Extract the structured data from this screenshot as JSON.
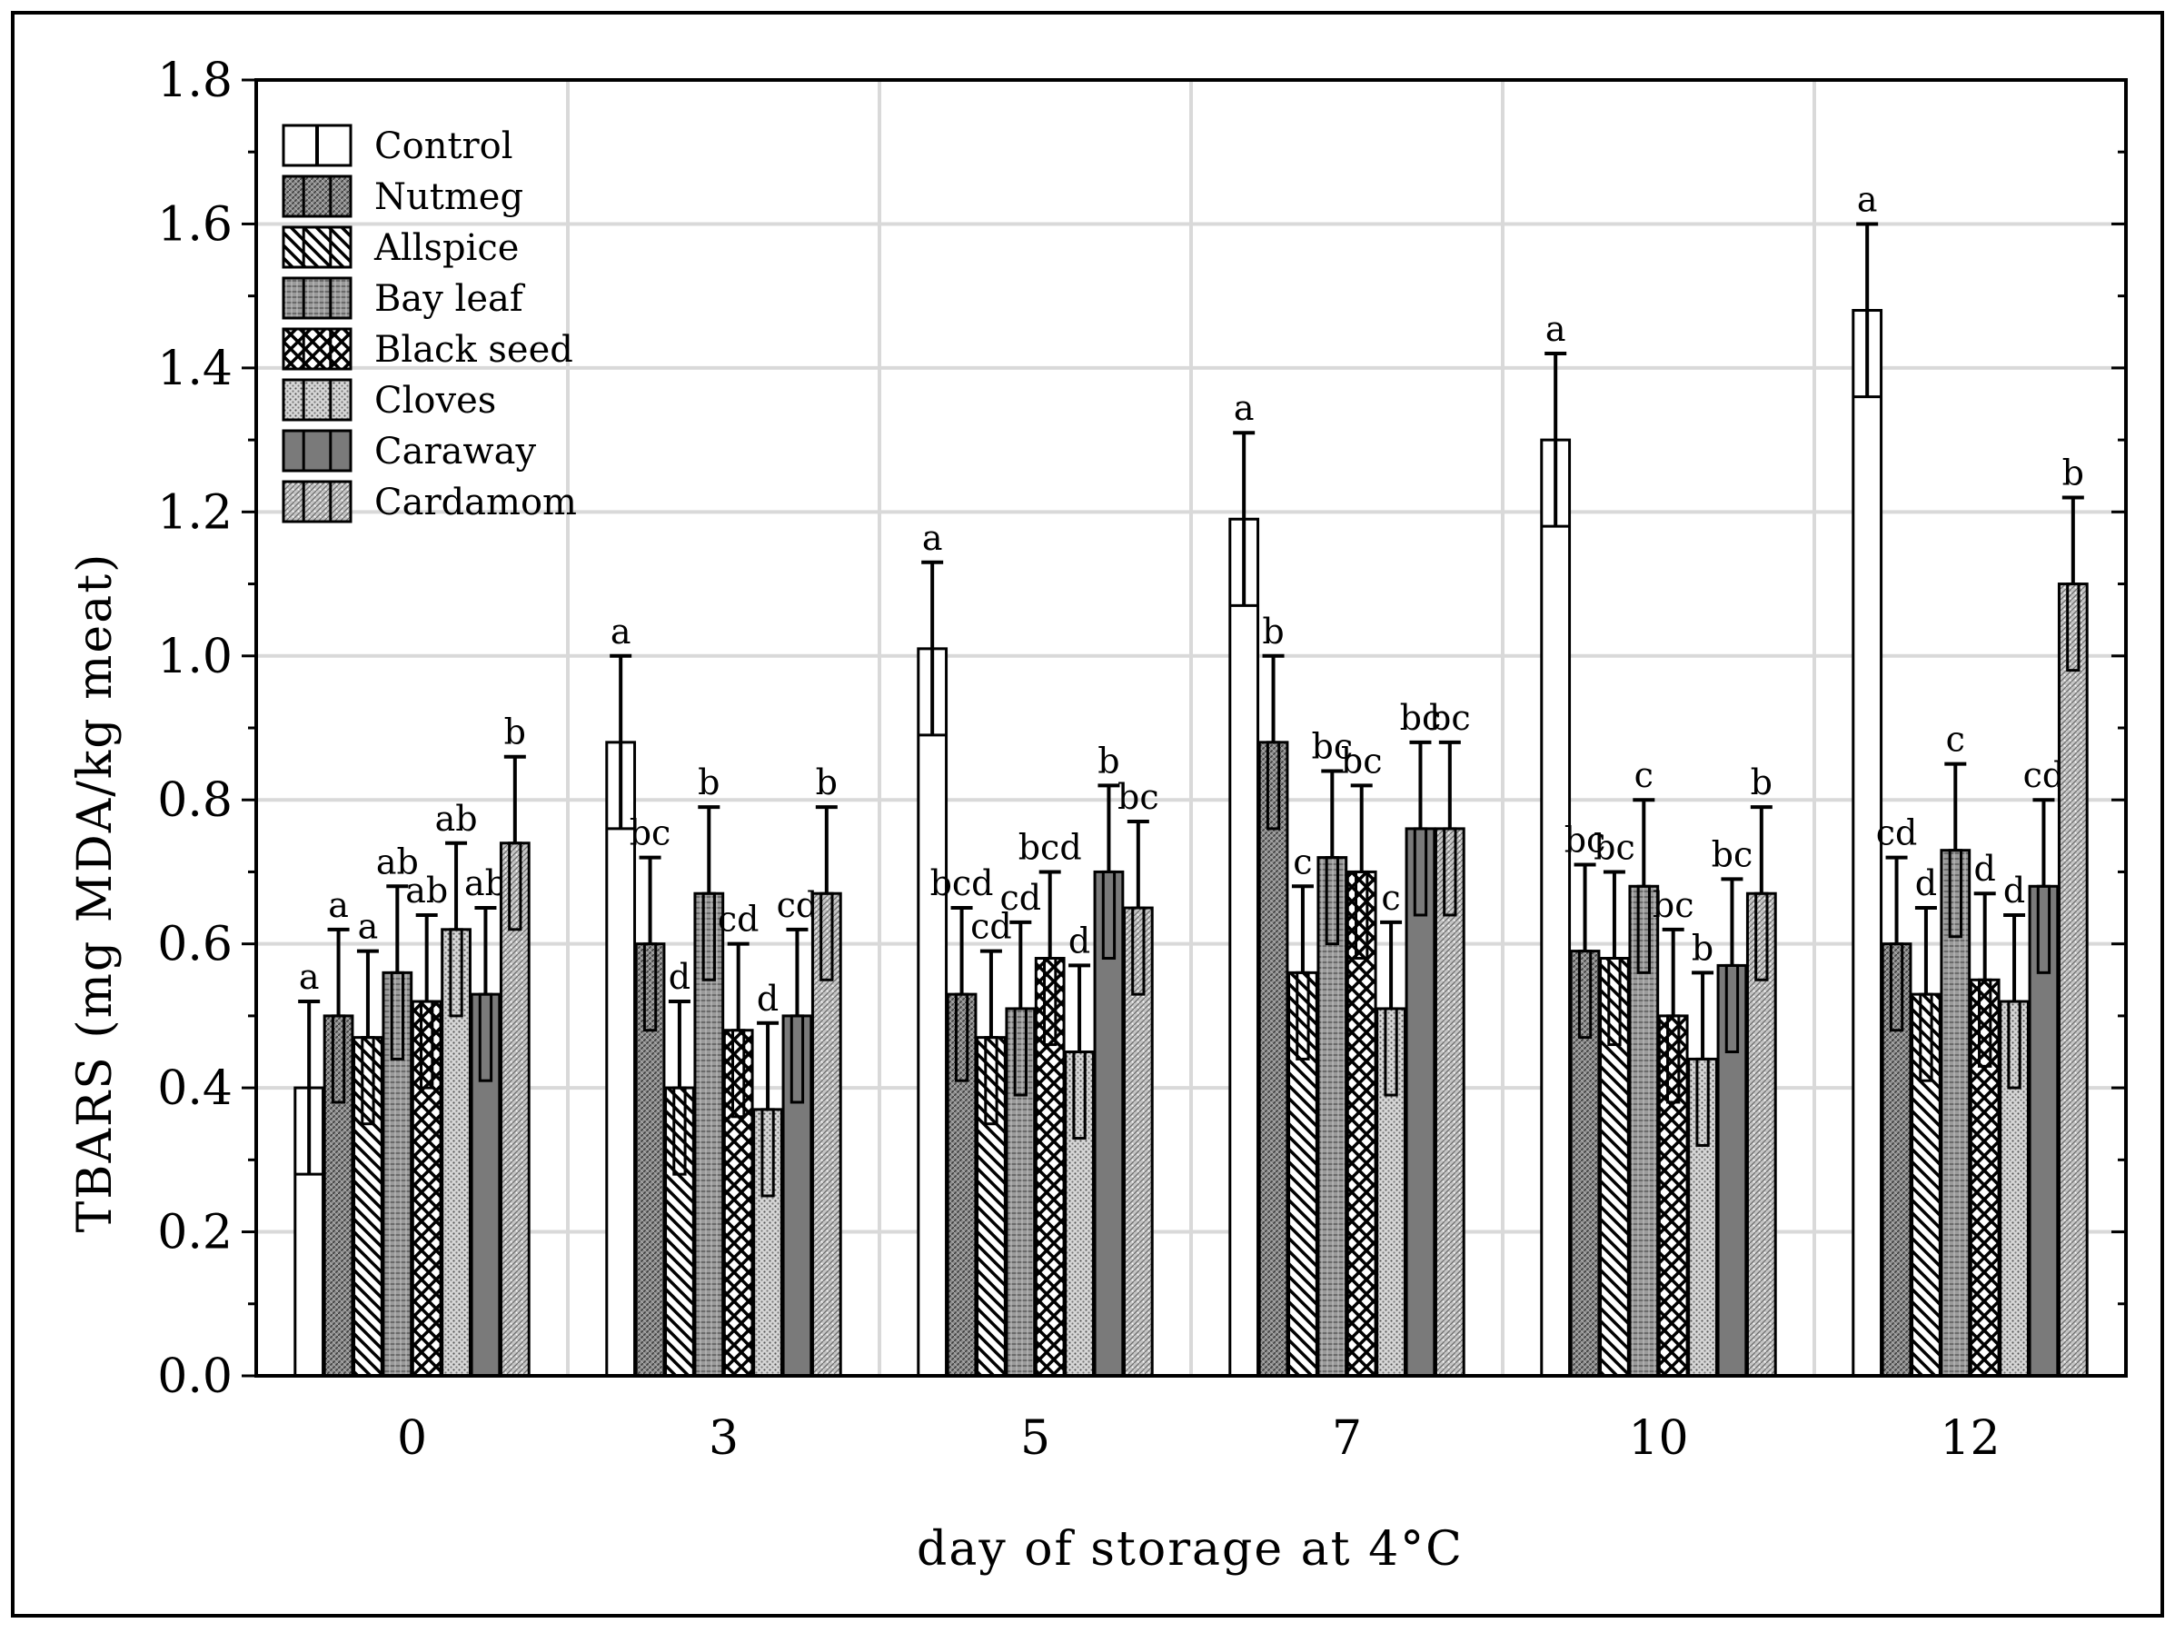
{
  "chart_data": {
    "type": "bar",
    "title": "",
    "xlabel": "day of storage at 4°C",
    "ylabel": "TBARS (mg MDA/kg meat)",
    "ylim": [
      0,
      1.8
    ],
    "yticks": [
      "0.0",
      "0.2",
      "0.4",
      "0.6",
      "0.8",
      "1.0",
      "1.2",
      "1.4",
      "1.6",
      "1.8"
    ],
    "categories": [
      "0",
      "3",
      "5",
      "7",
      "10",
      "12"
    ],
    "grid": true,
    "legend_position": "top-left",
    "error_bars": true,
    "series": [
      {
        "name": "Control",
        "pattern": "control",
        "values": [
          0.4,
          0.88,
          1.01,
          1.19,
          1.3,
          1.48
        ],
        "errors": [
          0.12,
          0.12,
          0.12,
          0.12,
          0.12,
          0.12
        ],
        "labels": [
          "a",
          "a",
          "a",
          "a",
          "a",
          "a"
        ]
      },
      {
        "name": "Nutmeg",
        "pattern": "dense",
        "values": [
          0.5,
          0.6,
          0.53,
          0.88,
          0.59,
          0.6
        ],
        "errors": [
          0.12,
          0.12,
          0.12,
          0.12,
          0.12,
          0.12
        ],
        "labels": [
          "a",
          "bc",
          "bcd",
          "b",
          "bc",
          "cd"
        ]
      },
      {
        "name": "Allspice",
        "pattern": "diagonal",
        "values": [
          0.47,
          0.4,
          0.47,
          0.56,
          0.58,
          0.53
        ],
        "errors": [
          0.12,
          0.12,
          0.12,
          0.12,
          0.12,
          0.12
        ],
        "labels": [
          "a",
          "d",
          "cd",
          "c",
          "bc",
          "d"
        ]
      },
      {
        "name": "Bay leaf",
        "pattern": "hatch",
        "values": [
          0.56,
          0.67,
          0.51,
          0.72,
          0.68,
          0.73
        ],
        "errors": [
          0.12,
          0.12,
          0.12,
          0.12,
          0.12,
          0.12
        ],
        "labels": [
          "ab",
          "b",
          "cd",
          "bc",
          "c",
          "c"
        ]
      },
      {
        "name": "Black seed",
        "pattern": "cross",
        "values": [
          0.52,
          0.48,
          0.58,
          0.7,
          0.5,
          0.55
        ],
        "errors": [
          0.12,
          0.12,
          0.12,
          0.12,
          0.12,
          0.12
        ],
        "labels": [
          "ab",
          "cd",
          "bcd",
          "bc",
          "bc",
          "d"
        ]
      },
      {
        "name": "Cloves",
        "pattern": "dots",
        "values": [
          0.62,
          0.37,
          0.45,
          0.51,
          0.44,
          0.52
        ],
        "errors": [
          0.12,
          0.12,
          0.12,
          0.12,
          0.12,
          0.12
        ],
        "labels": [
          "ab",
          "d",
          "d",
          "c",
          "b",
          "d"
        ]
      },
      {
        "name": "Caraway",
        "pattern": "solid",
        "values": [
          0.53,
          0.5,
          0.7,
          0.76,
          0.57,
          0.68
        ],
        "errors": [
          0.12,
          0.12,
          0.12,
          0.12,
          0.12,
          0.12
        ],
        "labels": [
          "ab",
          "cd",
          "b",
          "bc",
          "bc",
          "cd"
        ]
      },
      {
        "name": "Cardamom",
        "pattern": "fine",
        "values": [
          0.74,
          0.67,
          0.65,
          0.76,
          0.67,
          1.1
        ],
        "errors": [
          0.12,
          0.12,
          0.12,
          0.12,
          0.12,
          0.12
        ],
        "labels": [
          "b",
          "b",
          "bc",
          "bc",
          "b",
          "b"
        ]
      }
    ]
  }
}
